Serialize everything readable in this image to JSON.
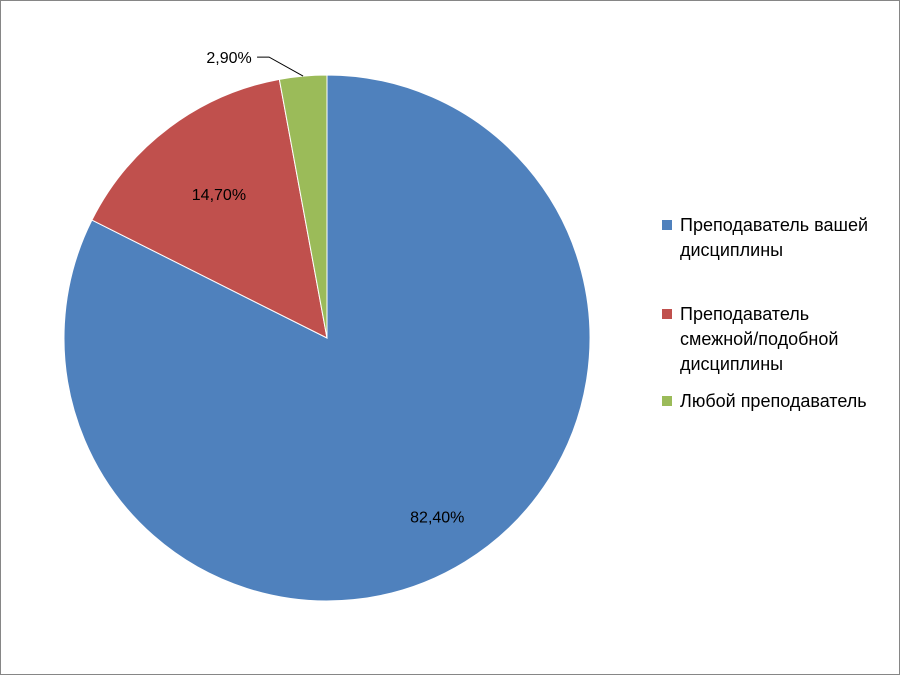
{
  "chart_data": {
    "type": "pie",
    "categories": [
      "Преподаватель вашей дисциплины",
      "Преподаватель смежной/подобной дисциплины",
      "Любой преподаватель"
    ],
    "values": [
      82.4,
      14.7,
      2.9
    ],
    "labels": [
      "82,40%",
      "14,70%",
      "2,90%"
    ],
    "colors": [
      "#4f81bd",
      "#c0504d",
      "#9bbb59"
    ],
    "legend": {
      "position": "right",
      "entries": [
        {
          "lines": [
            "Преподаватель вашей",
            "дисциплины"
          ]
        },
        {
          "lines": [
            "Преподаватель",
            "смежной/подобной",
            "дисциплины"
          ]
        },
        {
          "lines": [
            "Любой преподаватель"
          ]
        }
      ]
    }
  }
}
